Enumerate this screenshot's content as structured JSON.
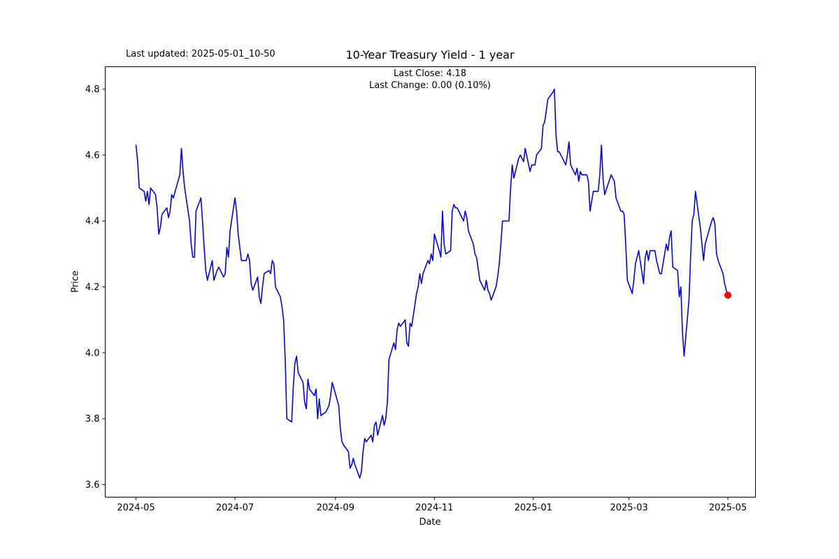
{
  "header": {
    "last_updated": "Last updated: 2025-05-01_10-50",
    "title": "10-Year Treasury Yield - 1 year",
    "subtitle_line1": "Last Close: 4.18",
    "subtitle_line2": "Last Change: 0.00 (0.10%)"
  },
  "chart_data": {
    "type": "line",
    "title": "10-Year Treasury Yield - 1 year",
    "xlabel": "Date",
    "ylabel": "Price",
    "grid": false,
    "legend_position": "none",
    "line_color": "#0000ff",
    "last_point_marker_color": "#ff0000",
    "axis_color": "#000000",
    "xlim": [
      "2024-04-12",
      "2025-05-18"
    ],
    "ylim": [
      3.562,
      4.868
    ],
    "y_ticks": [
      3.6,
      3.8,
      4.0,
      4.2,
      4.4,
      4.6,
      4.8
    ],
    "x_tick_dates": [
      "2024-05-01",
      "2024-07-01",
      "2024-09-01",
      "2024-11-01",
      "2025-01-01",
      "2025-03-01",
      "2025-05-01"
    ],
    "x_tick_labels": [
      "2024-05",
      "2024-07",
      "2024-09",
      "2024-11",
      "2025-01",
      "2025-03",
      "2025-05"
    ],
    "last_close": 4.18,
    "last_change": "0.00 (0.10%)",
    "dates": [
      "2024-05-01",
      "2024-05-02",
      "2024-05-03",
      "2024-05-06",
      "2024-05-07",
      "2024-05-08",
      "2024-05-09",
      "2024-05-10",
      "2024-05-13",
      "2024-05-14",
      "2024-05-15",
      "2024-05-16",
      "2024-05-17",
      "2024-05-20",
      "2024-05-21",
      "2024-05-22",
      "2024-05-23",
      "2024-05-24",
      "2024-05-28",
      "2024-05-29",
      "2024-05-30",
      "2024-05-31",
      "2024-06-03",
      "2024-06-04",
      "2024-06-05",
      "2024-06-06",
      "2024-06-07",
      "2024-06-10",
      "2024-06-11",
      "2024-06-12",
      "2024-06-13",
      "2024-06-14",
      "2024-06-17",
      "2024-06-18",
      "2024-06-20",
      "2024-06-21",
      "2024-06-24",
      "2024-06-25",
      "2024-06-26",
      "2024-06-27",
      "2024-06-28",
      "2024-07-01",
      "2024-07-02",
      "2024-07-03",
      "2024-07-05",
      "2024-07-08",
      "2024-07-09",
      "2024-07-10",
      "2024-07-11",
      "2024-07-12",
      "2024-07-15",
      "2024-07-16",
      "2024-07-17",
      "2024-07-18",
      "2024-07-19",
      "2024-07-22",
      "2024-07-23",
      "2024-07-24",
      "2024-07-25",
      "2024-07-26",
      "2024-07-29",
      "2024-07-30",
      "2024-07-31",
      "2024-08-01",
      "2024-08-02",
      "2024-08-05",
      "2024-08-06",
      "2024-08-07",
      "2024-08-08",
      "2024-08-09",
      "2024-08-12",
      "2024-08-13",
      "2024-08-14",
      "2024-08-15",
      "2024-08-16",
      "2024-08-19",
      "2024-08-20",
      "2024-08-21",
      "2024-08-22",
      "2024-08-23",
      "2024-08-26",
      "2024-08-27",
      "2024-08-28",
      "2024-08-29",
      "2024-08-30",
      "2024-09-03",
      "2024-09-04",
      "2024-09-05",
      "2024-09-06",
      "2024-09-09",
      "2024-09-10",
      "2024-09-11",
      "2024-09-12",
      "2024-09-13",
      "2024-09-16",
      "2024-09-17",
      "2024-09-18",
      "2024-09-19",
      "2024-09-20",
      "2024-09-23",
      "2024-09-24",
      "2024-09-25",
      "2024-09-26",
      "2024-09-27",
      "2024-09-30",
      "2024-10-01",
      "2024-10-02",
      "2024-10-03",
      "2024-10-04",
      "2024-10-07",
      "2024-10-08",
      "2024-10-09",
      "2024-10-10",
      "2024-10-11",
      "2024-10-14",
      "2024-10-15",
      "2024-10-16",
      "2024-10-17",
      "2024-10-18",
      "2024-10-21",
      "2024-10-22",
      "2024-10-23",
      "2024-10-24",
      "2024-10-25",
      "2024-10-28",
      "2024-10-29",
      "2024-10-30",
      "2024-10-31",
      "2024-11-01",
      "2024-11-04",
      "2024-11-05",
      "2024-11-06",
      "2024-11-07",
      "2024-11-08",
      "2024-11-11",
      "2024-11-12",
      "2024-11-13",
      "2024-11-14",
      "2024-11-15",
      "2024-11-18",
      "2024-11-19",
      "2024-11-20",
      "2024-11-21",
      "2024-11-22",
      "2024-11-25",
      "2024-11-26",
      "2024-11-27",
      "2024-11-29",
      "2024-12-02",
      "2024-12-03",
      "2024-12-04",
      "2024-12-05",
      "2024-12-06",
      "2024-12-09",
      "2024-12-10",
      "2024-12-11",
      "2024-12-12",
      "2024-12-13",
      "2024-12-16",
      "2024-12-17",
      "2024-12-18",
      "2024-12-19",
      "2024-12-20",
      "2024-12-23",
      "2024-12-24",
      "2024-12-26",
      "2024-12-27",
      "2024-12-30",
      "2024-12-31",
      "2025-01-02",
      "2025-01-03",
      "2025-01-06",
      "2025-01-07",
      "2025-01-08",
      "2025-01-10",
      "2025-01-13",
      "2025-01-14",
      "2025-01-15",
      "2025-01-16",
      "2025-01-17",
      "2025-01-21",
      "2025-01-22",
      "2025-01-23",
      "2025-01-24",
      "2025-01-27",
      "2025-01-28",
      "2025-01-29",
      "2025-01-30",
      "2025-01-31",
      "2025-02-03",
      "2025-02-04",
      "2025-02-05",
      "2025-02-06",
      "2025-02-07",
      "2025-02-10",
      "2025-02-11",
      "2025-02-12",
      "2025-02-13",
      "2025-02-14",
      "2025-02-18",
      "2025-02-19",
      "2025-02-20",
      "2025-02-21",
      "2025-02-24",
      "2025-02-25",
      "2025-02-26",
      "2025-02-27",
      "2025-02-28",
      "2025-03-03",
      "2025-03-04",
      "2025-03-05",
      "2025-03-06",
      "2025-03-07",
      "2025-03-10",
      "2025-03-11",
      "2025-03-12",
      "2025-03-13",
      "2025-03-14",
      "2025-03-17",
      "2025-03-18",
      "2025-03-19",
      "2025-03-20",
      "2025-03-21",
      "2025-03-24",
      "2025-03-25",
      "2025-03-26",
      "2025-03-27",
      "2025-03-28",
      "2025-03-31",
      "2025-04-01",
      "2025-04-02",
      "2025-04-03",
      "2025-04-04",
      "2025-04-07",
      "2025-04-08",
      "2025-04-09",
      "2025-04-10",
      "2025-04-11",
      "2025-04-14",
      "2025-04-15",
      "2025-04-16",
      "2025-04-17",
      "2025-04-21",
      "2025-04-22",
      "2025-04-23",
      "2025-04-24",
      "2025-04-25",
      "2025-04-28",
      "2025-04-29",
      "2025-04-30",
      "2025-05-01"
    ],
    "values": [
      4.63,
      4.58,
      4.5,
      4.49,
      4.46,
      4.49,
      4.45,
      4.5,
      4.48,
      4.44,
      4.36,
      4.38,
      4.42,
      4.44,
      4.41,
      4.43,
      4.48,
      4.47,
      4.54,
      4.62,
      4.55,
      4.5,
      4.4,
      4.33,
      4.29,
      4.29,
      4.43,
      4.47,
      4.4,
      4.32,
      4.25,
      4.22,
      4.28,
      4.22,
      4.25,
      4.26,
      4.23,
      4.24,
      4.32,
      4.29,
      4.37,
      4.47,
      4.43,
      4.36,
      4.28,
      4.28,
      4.3,
      4.28,
      4.21,
      4.19,
      4.23,
      4.17,
      4.15,
      4.2,
      4.24,
      4.25,
      4.24,
      4.28,
      4.27,
      4.2,
      4.17,
      4.14,
      4.1,
      3.98,
      3.8,
      3.79,
      3.9,
      3.97,
      3.99,
      3.94,
      3.91,
      3.85,
      3.83,
      3.92,
      3.89,
      3.87,
      3.89,
      3.8,
      3.86,
      3.81,
      3.82,
      3.83,
      3.84,
      3.87,
      3.91,
      3.84,
      3.77,
      3.73,
      3.72,
      3.7,
      3.65,
      3.66,
      3.68,
      3.66,
      3.62,
      3.64,
      3.7,
      3.74,
      3.73,
      3.75,
      3.73,
      3.78,
      3.79,
      3.75,
      3.81,
      3.78,
      3.8,
      3.85,
      3.98,
      4.03,
      4.01,
      4.07,
      4.09,
      4.08,
      4.1,
      4.03,
      4.02,
      4.09,
      4.08,
      4.18,
      4.2,
      4.24,
      4.21,
      4.24,
      4.28,
      4.27,
      4.3,
      4.28,
      4.36,
      4.31,
      4.29,
      4.43,
      4.33,
      4.3,
      4.31,
      4.43,
      4.45,
      4.44,
      4.44,
      4.41,
      4.4,
      4.43,
      4.41,
      4.37,
      4.33,
      4.3,
      4.29,
      4.22,
      4.19,
      4.22,
      4.19,
      4.18,
      4.16,
      4.2,
      4.23,
      4.27,
      4.33,
      4.4,
      4.4,
      4.4,
      4.5,
      4.57,
      4.53,
      4.59,
      4.6,
      4.58,
      4.62,
      4.55,
      4.57,
      4.57,
      4.6,
      4.62,
      4.69,
      4.7,
      4.77,
      4.79,
      4.8,
      4.66,
      4.61,
      4.61,
      4.57,
      4.6,
      4.64,
      4.57,
      4.54,
      4.56,
      4.52,
      4.55,
      4.54,
      4.54,
      4.52,
      4.43,
      4.46,
      4.49,
      4.49,
      4.54,
      4.63,
      4.53,
      4.48,
      4.54,
      4.53,
      4.52,
      4.47,
      4.43,
      4.43,
      4.42,
      4.33,
      4.22,
      4.18,
      4.22,
      4.27,
      4.29,
      4.31,
      4.21,
      4.29,
      4.31,
      4.28,
      4.31,
      4.31,
      4.28,
      4.26,
      4.24,
      4.24,
      4.33,
      4.31,
      4.35,
      4.37,
      4.26,
      4.25,
      4.17,
      4.2,
      4.06,
      3.99,
      4.16,
      4.29,
      4.4,
      4.42,
      4.49,
      4.38,
      4.33,
      4.28,
      4.33,
      4.4,
      4.41,
      4.39,
      4.3,
      4.28,
      4.24,
      4.21,
      4.19,
      4.175
    ]
  }
}
